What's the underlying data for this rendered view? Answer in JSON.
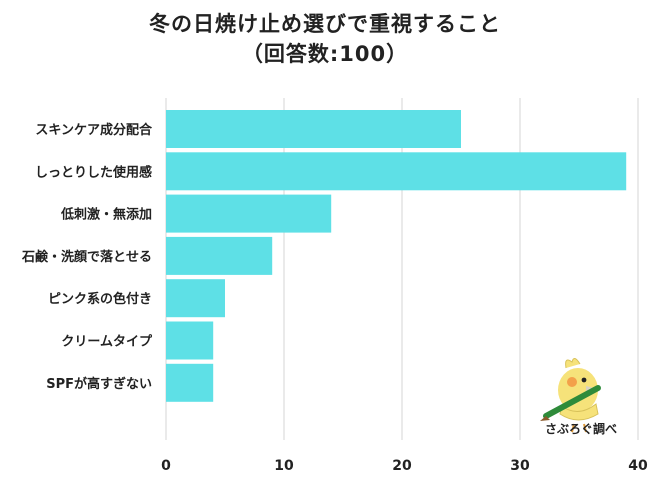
{
  "chart_data": {
    "type": "bar",
    "orientation": "horizontal",
    "title": "冬の日焼け止め選びで重視すること",
    "subtitle": "（回答数:100）",
    "categories": [
      "スキンケア成分配合",
      "しっとりした使用感",
      "低刺激・無添加",
      "石鹸・洗顔で落とせる",
      "ピンク系の色付き",
      "クリームタイプ",
      "SPFが高すぎない"
    ],
    "values": [
      25,
      39,
      14,
      9,
      5,
      4,
      4
    ],
    "xlim": [
      0,
      40
    ],
    "xticks": [
      0,
      10,
      20,
      30,
      40
    ],
    "grid": true,
    "bar_color": "#5ee0e6"
  },
  "logo": {
    "text": "さぶろぐ調べ"
  }
}
